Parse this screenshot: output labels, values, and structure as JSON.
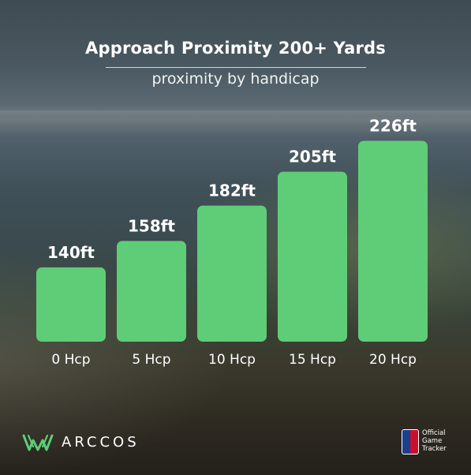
{
  "title": "Approach Proximity 200+ Yards",
  "subtitle": "proximity by handicap",
  "colors": {
    "bar": "#5fcd78",
    "text": "#ffffff",
    "accent": "#5fcd78"
  },
  "chart_data": {
    "type": "bar",
    "title": "Approach Proximity 200+ Yards",
    "subtitle": "proximity by handicap",
    "categories": [
      "0 Hcp",
      "5 Hcp",
      "10 Hcp",
      "15 Hcp",
      "20 Hcp"
    ],
    "values": [
      140,
      158,
      182,
      205,
      226
    ],
    "data_labels": [
      "140ft",
      "158ft",
      "182ft",
      "205ft",
      "226ft"
    ],
    "unit": "ft",
    "xlabel": "",
    "ylabel": "",
    "grid": false,
    "legend": "none"
  },
  "branding": {
    "logo_text": "ARCCOS",
    "logo_icon": "crown-icon",
    "partner_badge_icon": "pga-tour-logo-icon",
    "partner_text": [
      "Official",
      "Game",
      "Tracker"
    ]
  }
}
